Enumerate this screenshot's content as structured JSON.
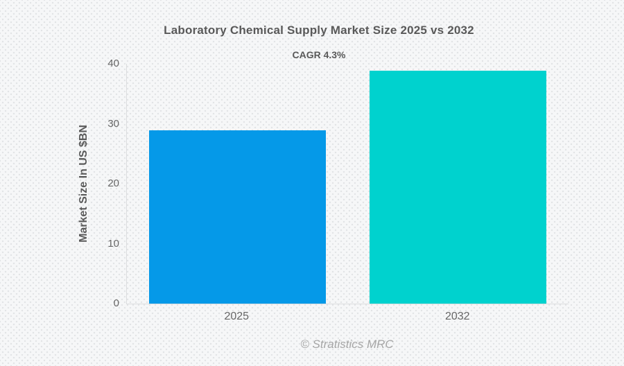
{
  "title": "Laboratory Chemical Supply Market Size 2025 vs 2032",
  "subtitle": "CAGR 4.3%",
  "footer": "© Stratistics MRC",
  "colors": {
    "background": "#f6f7f8",
    "dot": "#e2e4e6",
    "title_text": "#595959",
    "tick_text": "#666666",
    "axis_line": "#dcdddf",
    "footer_text": "#a6a6a6",
    "bar_2025": "#0599e8",
    "bar_2032": "#00d2ce"
  },
  "chart_data": {
    "type": "bar",
    "title": "Laboratory Chemical Supply Market Size 2025 vs 2032",
    "subtitle": "CAGR 4.3%",
    "categories": [
      "2025",
      "2032"
    ],
    "values": [
      28.9,
      38.8
    ],
    "bar_colors": [
      "#0599e8",
      "#00d2ce"
    ],
    "xlabel": "",
    "ylabel": "Market Size In US $BN",
    "ylim": [
      0,
      40
    ],
    "yticks": [
      0,
      10,
      20,
      30,
      40
    ],
    "grid": false,
    "legend": "none",
    "annotation": "CAGR 4.3%"
  }
}
